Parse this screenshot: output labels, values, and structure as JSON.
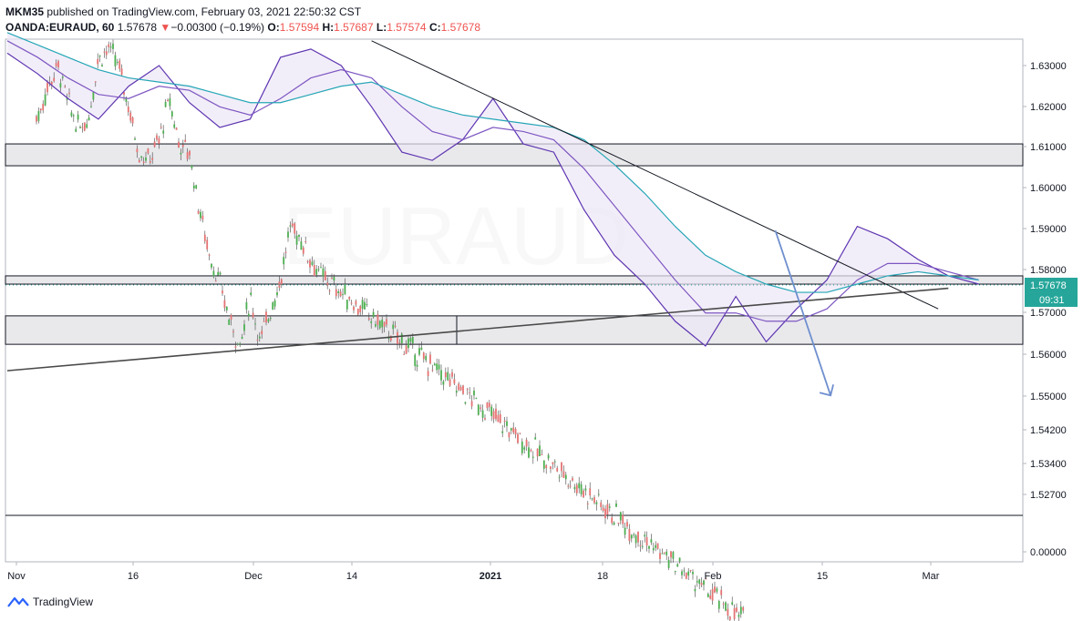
{
  "header": {
    "user": "MKM35",
    "published_text": "published on TradingView.com, February 03, 2021 22:50:32 CST",
    "symbol": "OANDA:EURAUD, 60",
    "price": "1.57678",
    "change_arrow": "▼",
    "change": "−0.00300 (−0.19%)",
    "open_label": "O:",
    "open": "1.57594",
    "high_label": "H:",
    "high": "1.57687",
    "low_label": "L:",
    "low": "1.57574",
    "close_label": "C:",
    "close": "1.57678"
  },
  "footer": {
    "brand": "TradingView",
    "logo_icon": "tradingview-logo-icon"
  },
  "watermark": {
    "symbol": "EURAUD"
  },
  "price_badge": {
    "value": "1.57678",
    "countdown": "09:31",
    "color": "#26a69a"
  },
  "colors": {
    "ema_fast": "#7e57c2",
    "ema_slow": "#26a6b6",
    "band_fill": "#ede7f6",
    "arrow": "#6f8fcf",
    "zone_fill": "#e9e9ec"
  },
  "chart_data": {
    "type": "line",
    "x_ticks": [
      "Nov",
      "16",
      "Dec",
      "14",
      "2021",
      "18",
      "Feb",
      "15",
      "Mar"
    ],
    "y_ticks": [
      "1.63000",
      "1.62000",
      "1.61000",
      "1.60000",
      "1.59000",
      "1.58000",
      "1.57000",
      "1.56000",
      "1.55000",
      "1.54200",
      "1.53400",
      "1.52700",
      "0.00000"
    ],
    "x": [
      0,
      3,
      6,
      9,
      12,
      15,
      18,
      21,
      24,
      27,
      30,
      33,
      36,
      39,
      42,
      45,
      48,
      51,
      54,
      57,
      60,
      63,
      66,
      69,
      72,
      75,
      78,
      81,
      84,
      87,
      90,
      93,
      96
    ],
    "series": [
      {
        "values": [
          1.633,
          1.628,
          1.622,
          1.617,
          1.625,
          1.63,
          1.621,
          1.615,
          1.617,
          1.632,
          1.634,
          1.63,
          1.62,
          1.609,
          1.607,
          1.612,
          1.622,
          1.611,
          1.609,
          1.595,
          1.584,
          1.577,
          1.568,
          1.562,
          1.574,
          1.563,
          1.571,
          1.578,
          1.591,
          1.588,
          1.583,
          1.579,
          1.577
        ]
      },
      {
        "values": [
          1.636,
          1.632,
          1.627,
          1.623,
          1.622,
          1.625,
          1.624,
          1.62,
          1.618,
          1.622,
          1.627,
          1.629,
          1.627,
          1.62,
          1.614,
          1.612,
          1.615,
          1.614,
          1.612,
          1.605,
          1.596,
          1.587,
          1.578,
          1.57,
          1.57,
          1.568,
          1.568,
          1.571,
          1.578,
          1.582,
          1.582,
          1.58,
          1.578
        ]
      },
      {
        "values": [
          1.638,
          1.635,
          1.632,
          1.629,
          1.627,
          1.626,
          1.625,
          1.623,
          1.621,
          1.621,
          1.623,
          1.625,
          1.626,
          1.623,
          1.62,
          1.618,
          1.617,
          1.616,
          1.615,
          1.612,
          1.606,
          1.599,
          1.591,
          1.584,
          1.58,
          1.577,
          1.575,
          1.575,
          1.577,
          1.579,
          1.58,
          1.579,
          1.578
        ]
      }
    ],
    "zones": [
      {
        "top": 1.611,
        "bottom": 1.6057
      },
      {
        "top": 1.579,
        "bottom": 1.577
      },
      {
        "top": 1.5693,
        "bottom": 1.5624
      }
    ],
    "trendlines": [
      {
        "from": [
          36,
          1.636
        ],
        "to": [
          92,
          1.571
        ]
      },
      {
        "from": [
          0,
          1.556
        ],
        "to": [
          93,
          1.576
        ]
      }
    ],
    "forecast_arrow": {
      "from": [
        75,
        1.59
      ],
      "to": [
        81,
        1.55
      ]
    }
  }
}
